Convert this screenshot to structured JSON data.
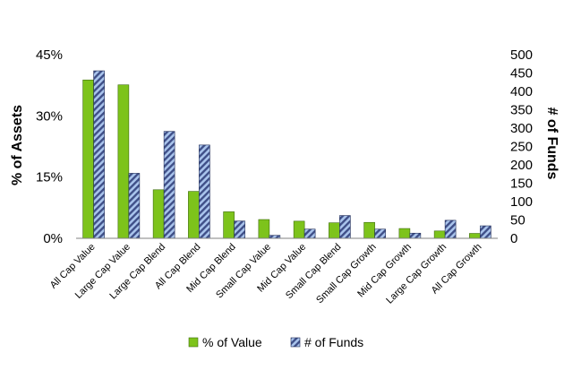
{
  "chart_data": {
    "type": "bar",
    "title": "",
    "categories": [
      "All Cap Value",
      "Large Cap Value",
      "Large Cap Blend",
      "All Cap Blend",
      "Mid Cap Blend",
      "Small Cap Value",
      "Mid Cap Value",
      "Small Cap Blend",
      "Small Cap Growth",
      "Mid Cap Growth",
      "Large Cap Growth",
      "All Cap Growth"
    ],
    "series": [
      {
        "name": "% of Value",
        "axis": "left",
        "color": "#7dc31b",
        "values": [
          38.8,
          37.6,
          11.9,
          11.5,
          6.5,
          4.6,
          4.2,
          3.8,
          3.9,
          2.4,
          1.8,
          1.2
        ]
      },
      {
        "name": "# of Funds",
        "axis": "right",
        "color": "#3f4f88",
        "pattern": "diagonal-stripes",
        "values": [
          456,
          177,
          291,
          254,
          47,
          8,
          25,
          62,
          25,
          14,
          49,
          34
        ]
      }
    ],
    "ylabel": "% of Assets",
    "y2label": "# of Funds",
    "ylim": [
      0,
      45
    ],
    "y2lim": [
      0,
      500
    ],
    "yticks": [
      "0%",
      "15%",
      "30%",
      "45%"
    ],
    "y2ticks": [
      "0",
      "50",
      "100",
      "150",
      "200",
      "250",
      "300",
      "350",
      "400",
      "450",
      "500"
    ],
    "legend": "bottom",
    "grid": false
  }
}
